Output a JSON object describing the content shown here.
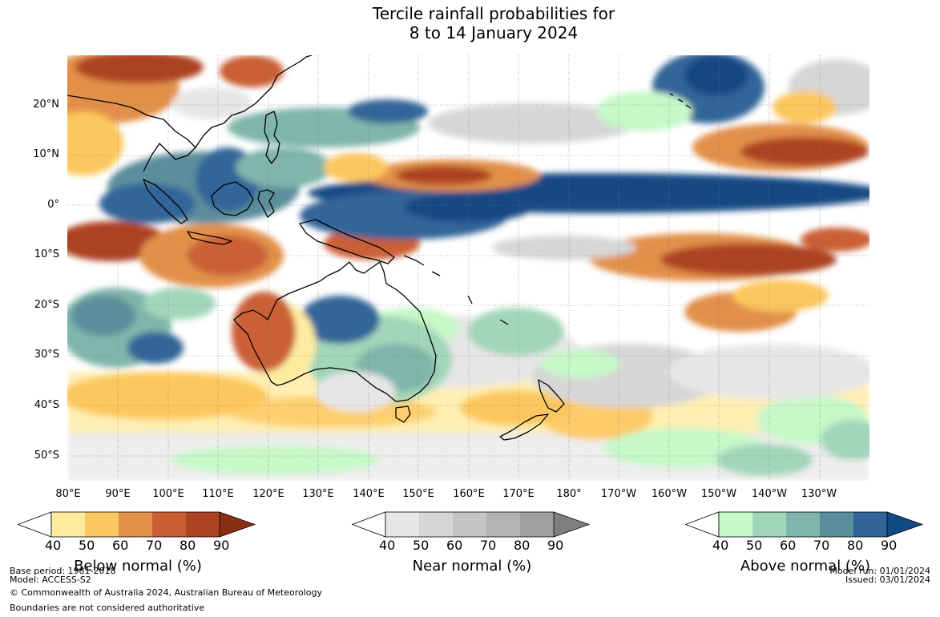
{
  "title": {
    "line1": "Tercile rainfall probabilities for",
    "line2": "8 to 14 January 2024"
  },
  "map": {
    "lat_labels": [
      "20°N",
      "10°N",
      "0°",
      "10°S",
      "20°S",
      "30°S",
      "40°S",
      "50°S"
    ],
    "lon_labels": [
      "80°E",
      "90°E",
      "100°E",
      "110°E",
      "120°E",
      "130°E",
      "140°E",
      "150°E",
      "160°E",
      "170°E",
      "180°",
      "170°W",
      "160°W",
      "150°W",
      "140°W",
      "130°W"
    ]
  },
  "legends": [
    {
      "title": "Below normal (%)",
      "ticks": [
        "40",
        "50",
        "60",
        "70",
        "80",
        "90"
      ],
      "colors": [
        "#ffeba0",
        "#fdc75f",
        "#e2904a",
        "#cb5f34",
        "#ad4322",
        "#8a2e14"
      ]
    },
    {
      "title": "Near normal (%)",
      "ticks": [
        "40",
        "50",
        "60",
        "70",
        "80",
        "90"
      ],
      "colors": [
        "#e6e6e6",
        "#d6d6d6",
        "#c4c4c4",
        "#b3b3b3",
        "#a0a0a0",
        "#7f7f7f"
      ]
    },
    {
      "title": "Above normal (%)",
      "ticks": [
        "40",
        "50",
        "60",
        "70",
        "80",
        "90"
      ],
      "colors": [
        "#c6f8c8",
        "#a2d6ba",
        "#7fb5aa",
        "#5b8e9c",
        "#316599",
        "#124a84"
      ]
    }
  ],
  "footer": {
    "base_period": "Base period: 1981-2018",
    "model": "Model: ACCESS-S2",
    "copyright": "© Commonwealth of Australia 2024, Australian Bureau of Meteorology",
    "boundaries": "Boundaries are not considered authoritative",
    "model_run": "Model run: 01/01/2024",
    "issued": "Issued: 03/01/2024"
  }
}
